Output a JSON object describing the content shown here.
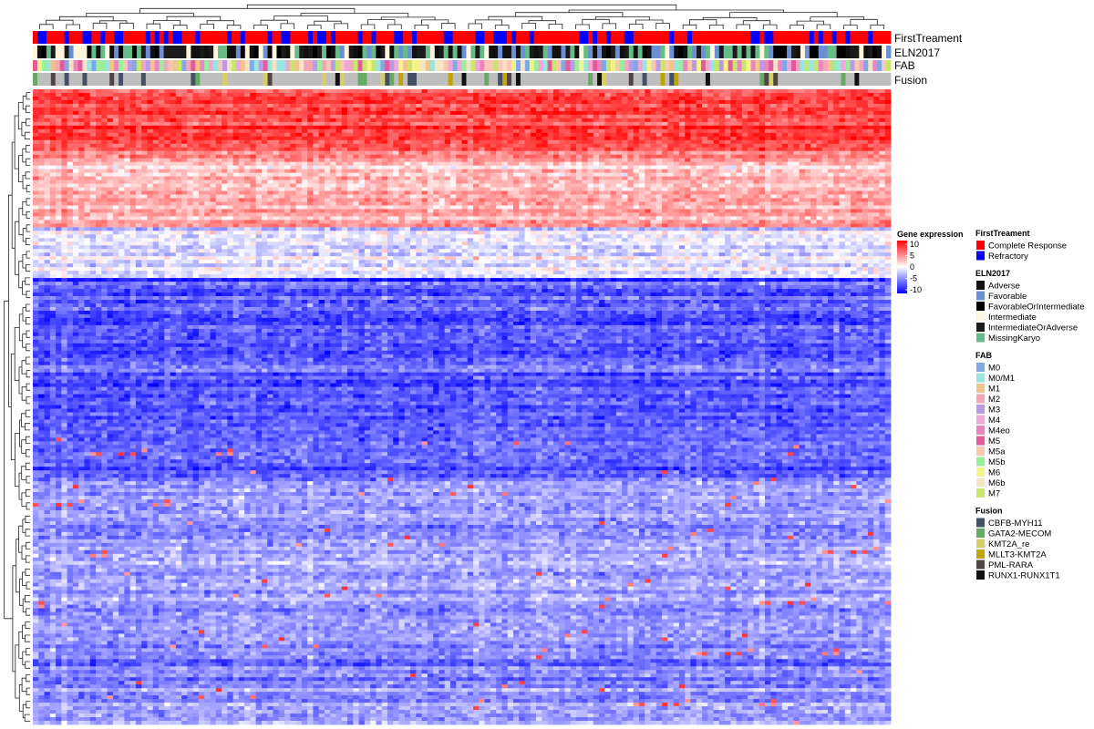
{
  "chart_data": {
    "type": "heatmap",
    "title": "",
    "xlabel": "",
    "ylabel": "",
    "dendrograms": {
      "columns": "top",
      "rows": "left"
    },
    "annotation_tracks": [
      "FirstTreament",
      "ELN2017",
      "FAB",
      "Fusion"
    ],
    "color_scale": {
      "title": "Gene expression",
      "ticks": [
        "10",
        "5",
        "0",
        "-5",
        "-10"
      ],
      "range": [
        -10,
        10
      ],
      "low_color": "#0000ff",
      "mid_color": "#ffffff",
      "high_color": "#ff0000"
    },
    "expression_profile": {
      "row_bands": [
        {
          "band": "top",
          "row_fraction": [
            0.0,
            0.1
          ],
          "mean_value": 7.5
        },
        {
          "band": "upper",
          "row_fraction": [
            0.1,
            0.22
          ],
          "mean_value": 3.0
        },
        {
          "band": "transition",
          "row_fraction": [
            0.22,
            0.3
          ],
          "mean_value": -1.0
        },
        {
          "band": "middle",
          "row_fraction": [
            0.3,
            0.62
          ],
          "mean_value": -6.5
        },
        {
          "band": "lower",
          "row_fraction": [
            0.62,
            1.0
          ],
          "mean_value": -4.0
        }
      ]
    },
    "legends": [
      {
        "title": "FirstTreament",
        "entries": [
          {
            "label": "Complete Response",
            "color": "#ff0000"
          },
          {
            "label": "Refractory",
            "color": "#0000ff"
          }
        ]
      },
      {
        "title": "ELN2017",
        "entries": [
          {
            "label": "Adverse",
            "color": "#111111"
          },
          {
            "label": "Favorable",
            "color": "#6b8fd6"
          },
          {
            "label": "FavorableOrIntermediate",
            "color": "#000000"
          },
          {
            "label": "Intermediate",
            "color": "#fdf5dc"
          },
          {
            "label": "IntermediateOrAdverse",
            "color": "#1b1b1b"
          },
          {
            "label": "MissingKaryo",
            "color": "#66bb88"
          }
        ]
      },
      {
        "title": "FAB",
        "entries": [
          {
            "label": "M0",
            "color": "#7fa8e6"
          },
          {
            "label": "M0/M1",
            "color": "#99e6e0"
          },
          {
            "label": "M1",
            "color": "#f4c28c"
          },
          {
            "label": "M2",
            "color": "#f3a6b8"
          },
          {
            "label": "M3",
            "color": "#b89ae6"
          },
          {
            "label": "M4",
            "color": "#f0a6d6"
          },
          {
            "label": "M4eo",
            "color": "#ec84c0"
          },
          {
            "label": "M5",
            "color": "#e25c9a"
          },
          {
            "label": "M5a",
            "color": "#f9c8b0"
          },
          {
            "label": "M5b",
            "color": "#99ee99"
          },
          {
            "label": "M6",
            "color": "#f6f28a"
          },
          {
            "label": "M6b",
            "color": "#f4e4c4"
          },
          {
            "label": "M7",
            "color": "#c6e66c"
          }
        ]
      },
      {
        "title": "Fusion",
        "entries": [
          {
            "label": "CBFB-MYH11",
            "color": "#454f66"
          },
          {
            "label": "GATA2-MECOM",
            "color": "#66aa66"
          },
          {
            "label": "KMT2A_re",
            "color": "#d6cf66"
          },
          {
            "label": "MLLT3-KMT2A",
            "color": "#c2a400"
          },
          {
            "label": "PML-RARA",
            "color": "#504444"
          },
          {
            "label": "RUNX1-RUNX1T1",
            "color": "#111111"
          }
        ]
      }
    ],
    "track_default_colors": {
      "Fusion": "#bebebe"
    }
  }
}
